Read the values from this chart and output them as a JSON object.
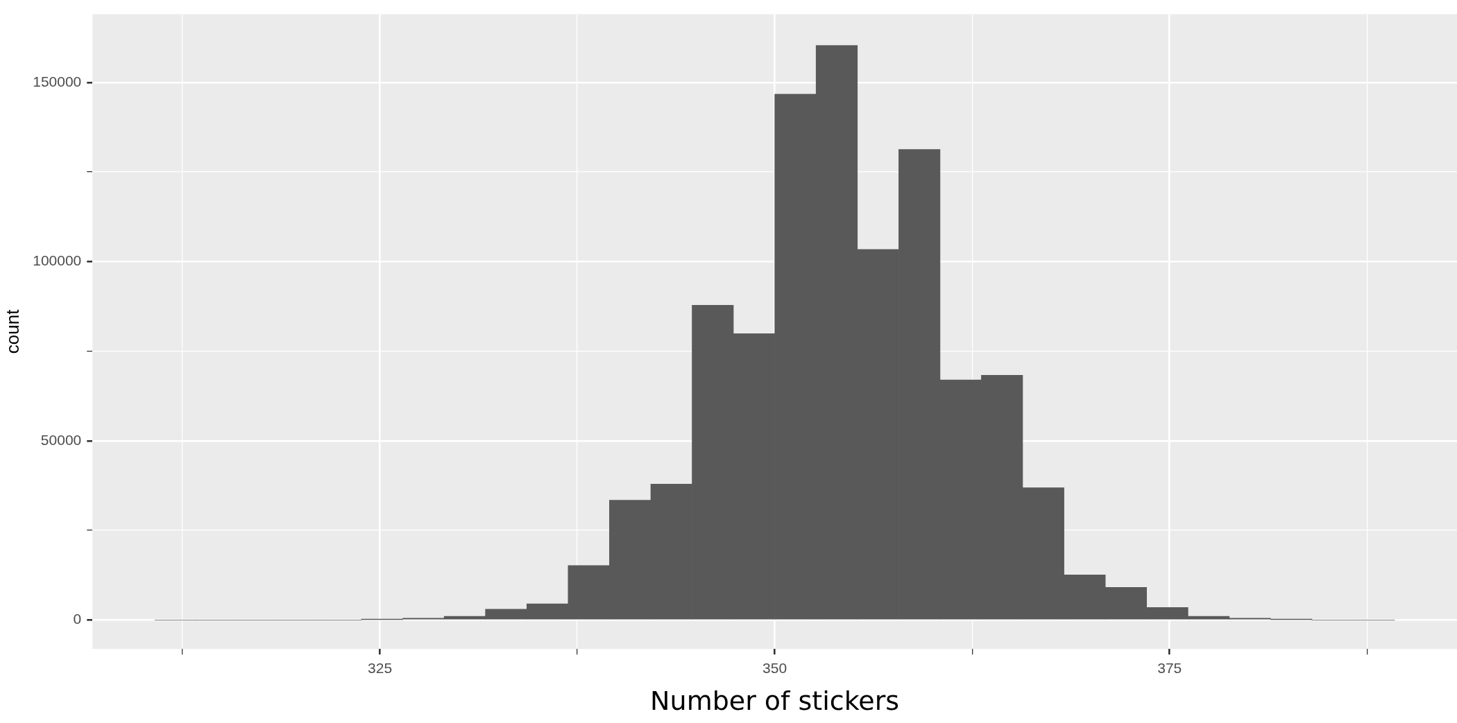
{
  "chart_data": {
    "type": "histogram",
    "xlabel": "Number of stickers",
    "ylabel": "count",
    "bins": [
      310.75,
      313.37,
      315.98,
      318.6,
      321.22,
      323.83,
      326.45,
      329.07,
      331.68,
      334.3,
      336.92,
      339.53,
      342.15,
      344.77,
      347.38,
      350,
      352.62,
      355.23,
      357.85,
      360.47,
      363.08,
      365.7,
      368.32,
      370.93,
      373.55,
      376.17,
      378.78,
      381.4,
      384.02,
      386.63,
      389.25
    ],
    "values": [
      0,
      0,
      0,
      0,
      0,
      100,
      500,
      1000,
      3000,
      4500,
      15200,
      33400,
      37900,
      87800,
      79900,
      146700,
      160300,
      103400,
      131300,
      67000,
      68300,
      36900,
      12600,
      9100,
      3500,
      1000,
      500,
      100,
      0,
      0
    ],
    "color": "#595959",
    "xlim": [
      306.8,
      393.2
    ],
    "xticks": [
      {
        "value": 312.5,
        "label": null
      },
      325,
      {
        "value": 337.5,
        "label": null
      },
      350,
      {
        "value": 362.5,
        "label": null
      },
      375,
      {
        "value": 387.5,
        "label": null
      }
    ],
    "ylim": [
      -8090,
      169000
    ],
    "yticks": [
      0,
      {
        "value": 25000,
        "label": null
      },
      50000,
      {
        "value": 75000,
        "label": null
      },
      100000,
      {
        "value": 125000,
        "label": null
      },
      150000
    ],
    "grid": true
  }
}
